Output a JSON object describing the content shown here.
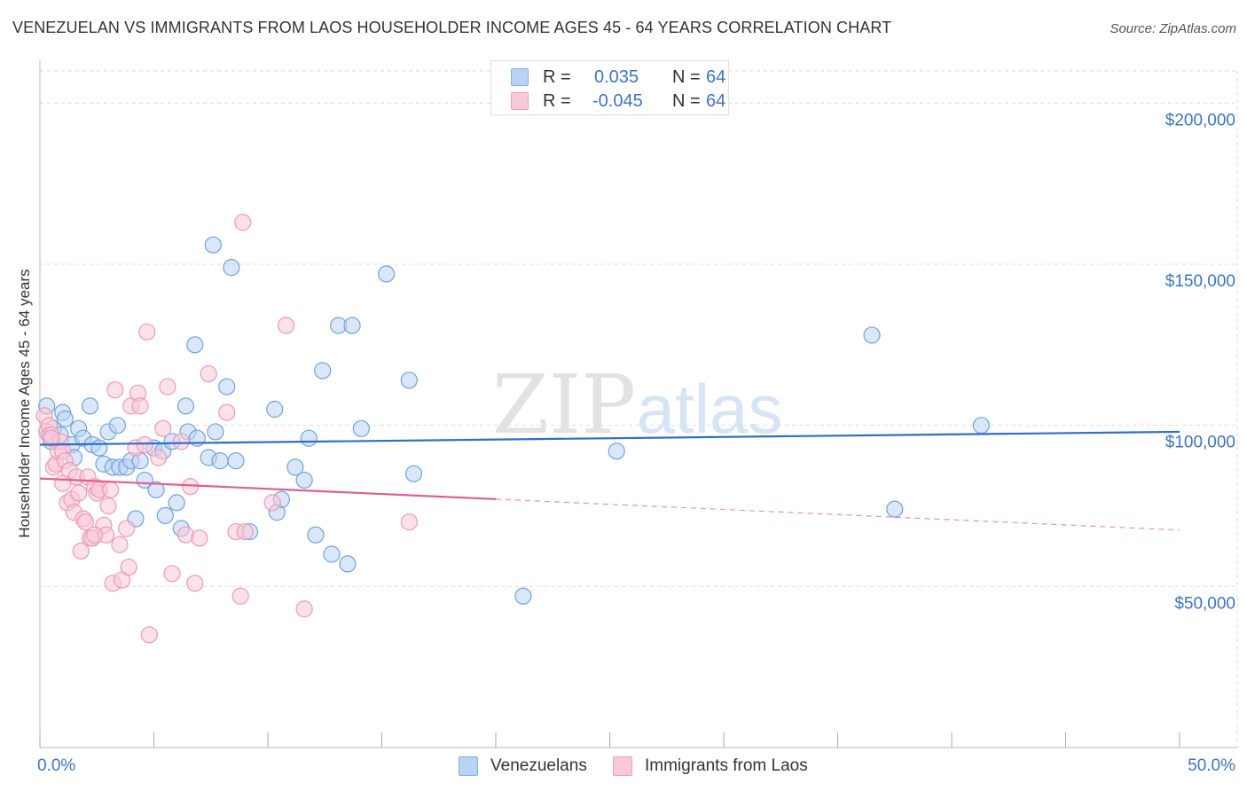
{
  "title": "VENEZUELAN VS IMMIGRANTS FROM LAOS HOUSEHOLDER INCOME AGES 45 - 64 YEARS CORRELATION CHART",
  "source": "Source: ZipAtlas.com",
  "watermark": {
    "zip": "ZIP",
    "atlas": "atlas"
  },
  "legend": {
    "rows": [
      {
        "r_label": "R =",
        "r_value": "0.035",
        "n_label": "N =",
        "n_value": "64",
        "color": "#7fb0e8",
        "fill": "#b9d3f3"
      },
      {
        "r_label": "R =",
        "r_value": "-0.045",
        "n_label": "N =",
        "n_value": "64",
        "color": "#f0a0b8",
        "fill": "#f9c9d7"
      }
    ]
  },
  "bottom_legend": [
    "Venezuelans",
    "Immigrants from Laos"
  ],
  "colors": {
    "blue_stroke": "#6fa3e0",
    "blue_fill": "#b9d3f3",
    "blue_line": "#2f6fcc",
    "pink_stroke": "#ee99b4",
    "pink_fill": "#f9c9d7",
    "pink_line": "#e0608a",
    "axis_text": "#3b74c8",
    "grid": "#dddddd"
  },
  "chart_data": {
    "type": "scatter",
    "title": "VENEZUELAN VS IMMIGRANTS FROM LAOS HOUSEHOLDER INCOME AGES 45 - 64 YEARS CORRELATION CHART",
    "xlabel": "",
    "ylabel": "Householder Income Ages 45 - 64 years",
    "xlim": [
      0,
      50
    ],
    "ylim": [
      0,
      210000
    ],
    "x_tick_labels": [
      "0.0%",
      "50.0%"
    ],
    "y_ticks": [
      50000,
      100000,
      150000,
      200000
    ],
    "y_tick_labels": [
      "$50,000",
      "$100,000",
      "$150,000",
      "$200,000"
    ],
    "series": [
      {
        "name": "Venezuelans",
        "R": 0.035,
        "N": 64,
        "trend": {
          "x": [
            0,
            50
          ],
          "y": [
            94000,
            98000
          ],
          "solid_until": 50
        },
        "points": [
          [
            0.3,
            106000
          ],
          [
            0.4,
            97000
          ],
          [
            0.5,
            95000
          ],
          [
            0.6,
            99000
          ],
          [
            0.9,
            97000
          ],
          [
            1.0,
            104000
          ],
          [
            1.1,
            102000
          ],
          [
            1.4,
            94000
          ],
          [
            1.5,
            90000
          ],
          [
            1.7,
            99000
          ],
          [
            1.9,
            96000
          ],
          [
            2.2,
            106000
          ],
          [
            2.3,
            94000
          ],
          [
            2.6,
            93000
          ],
          [
            2.8,
            88000
          ],
          [
            3.0,
            98000
          ],
          [
            3.2,
            87000
          ],
          [
            3.4,
            100000
          ],
          [
            3.5,
            87000
          ],
          [
            3.8,
            87000
          ],
          [
            4.0,
            89000
          ],
          [
            4.2,
            71000
          ],
          [
            4.4,
            89000
          ],
          [
            4.6,
            83000
          ],
          [
            5.0,
            93000
          ],
          [
            5.1,
            80000
          ],
          [
            5.4,
            92000
          ],
          [
            5.5,
            72000
          ],
          [
            5.8,
            95000
          ],
          [
            6.0,
            76000
          ],
          [
            6.2,
            68000
          ],
          [
            6.4,
            106000
          ],
          [
            6.5,
            98000
          ],
          [
            6.8,
            125000
          ],
          [
            6.9,
            96000
          ],
          [
            7.4,
            90000
          ],
          [
            7.6,
            156000
          ],
          [
            7.7,
            98000
          ],
          [
            7.9,
            89000
          ],
          [
            8.2,
            112000
          ],
          [
            8.4,
            149000
          ],
          [
            8.6,
            89000
          ],
          [
            9.2,
            67000
          ],
          [
            10.3,
            105000
          ],
          [
            10.4,
            73000
          ],
          [
            10.6,
            77000
          ],
          [
            11.2,
            87000
          ],
          [
            11.6,
            83000
          ],
          [
            11.8,
            96000
          ],
          [
            12.1,
            66000
          ],
          [
            12.4,
            117000
          ],
          [
            12.8,
            60000
          ],
          [
            13.1,
            131000
          ],
          [
            13.5,
            57000
          ],
          [
            13.7,
            131000
          ],
          [
            14.1,
            99000
          ],
          [
            15.2,
            147000
          ],
          [
            16.2,
            114000
          ],
          [
            16.4,
            85000
          ],
          [
            21.2,
            47000
          ],
          [
            25.3,
            92000
          ],
          [
            36.5,
            128000
          ],
          [
            37.5,
            74000
          ],
          [
            41.3,
            100000
          ]
        ]
      },
      {
        "name": "Immigrants from Laos",
        "R": -0.045,
        "N": 64,
        "trend": {
          "x": [
            0,
            50
          ],
          "y": [
            83500,
            67500
          ],
          "solid_until": 20
        },
        "points": [
          [
            0.2,
            103000
          ],
          [
            0.3,
            98000
          ],
          [
            0.4,
            100000
          ],
          [
            0.5,
            97000
          ],
          [
            0.6,
            87000
          ],
          [
            0.7,
            88000
          ],
          [
            0.8,
            92000
          ],
          [
            0.9,
            95000
          ],
          [
            1.0,
            92000
          ],
          [
            1.1,
            89000
          ],
          [
            1.2,
            76000
          ],
          [
            1.3,
            86000
          ],
          [
            1.4,
            77000
          ],
          [
            1.5,
            73000
          ],
          [
            1.6,
            84000
          ],
          [
            1.7,
            79000
          ],
          [
            1.8,
            61000
          ],
          [
            1.9,
            71000
          ],
          [
            2.0,
            70000
          ],
          [
            2.1,
            84000
          ],
          [
            2.2,
            65000
          ],
          [
            2.3,
            65000
          ],
          [
            2.4,
            81000
          ],
          [
            2.5,
            79000
          ],
          [
            2.6,
            80000
          ],
          [
            2.8,
            69000
          ],
          [
            2.9,
            66000
          ],
          [
            3.0,
            75000
          ],
          [
            3.1,
            80000
          ],
          [
            3.2,
            51000
          ],
          [
            3.3,
            111000
          ],
          [
            3.5,
            63000
          ],
          [
            3.6,
            52000
          ],
          [
            3.8,
            68000
          ],
          [
            3.9,
            56000
          ],
          [
            4.0,
            106000
          ],
          [
            4.2,
            93000
          ],
          [
            4.3,
            110000
          ],
          [
            4.4,
            106000
          ],
          [
            4.6,
            94000
          ],
          [
            4.7,
            129000
          ],
          [
            4.8,
            35000
          ],
          [
            5.2,
            90000
          ],
          [
            5.4,
            99000
          ],
          [
            5.6,
            112000
          ],
          [
            5.8,
            54000
          ],
          [
            6.2,
            95000
          ],
          [
            6.4,
            66000
          ],
          [
            6.6,
            81000
          ],
          [
            6.8,
            51000
          ],
          [
            7.0,
            65000
          ],
          [
            7.4,
            116000
          ],
          [
            8.2,
            104000
          ],
          [
            8.6,
            67000
          ],
          [
            8.8,
            47000
          ],
          [
            8.9,
            163000
          ],
          [
            9.0,
            67000
          ],
          [
            10.2,
            76000
          ],
          [
            10.8,
            131000
          ],
          [
            11.6,
            43000
          ],
          [
            16.2,
            70000
          ],
          [
            2.4,
            66000
          ],
          [
            1.0,
            82000
          ],
          [
            0.5,
            96000
          ]
        ]
      }
    ]
  }
}
